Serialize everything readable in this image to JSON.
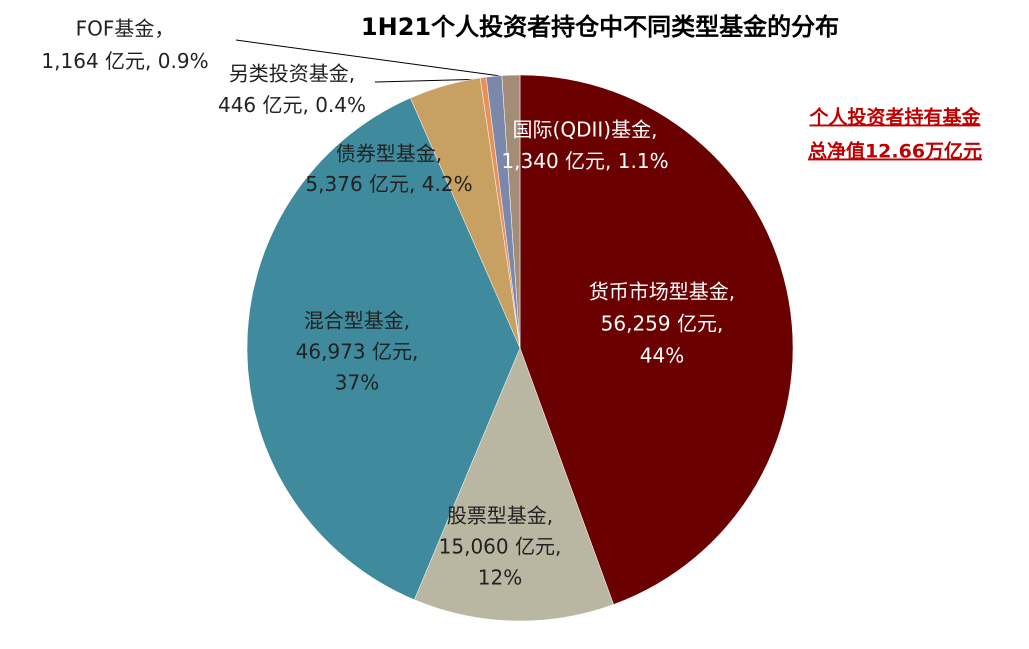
{
  "chart_data": {
    "type": "pie",
    "title": "1H21个人投资者持仓中不同类型基金的分布",
    "annotation": [
      "个人投资者持有基金",
      "总净值12.66万亿元"
    ],
    "categories": [
      "货币市场型基金,",
      "股票型基金,",
      "混合型基金,",
      "债券型基金,",
      "另类投资基金,",
      "FOF基金，",
      "国际(QDII)基金,"
    ],
    "values": [
      56259,
      15060,
      46973,
      5376,
      446,
      1164,
      1340
    ],
    "value_labels": [
      "56,259 亿元,",
      "15,060 亿元,",
      "46,973 亿元,",
      "5,376 亿元,",
      "446 亿元,",
      "1,164 亿元,",
      "1,340 亿元,"
    ],
    "shares": [
      44,
      12,
      37,
      4.2,
      0.4,
      0.9,
      1.1
    ],
    "share_labels": [
      "44%",
      "12%",
      "37%",
      "4.2%",
      "0.4%",
      "0.9%",
      "1.1%"
    ],
    "colors": [
      "#6b0000",
      "#b9b6a2",
      "#3f8a9c",
      "#c8a062",
      "#e8905a",
      "#7c88aa",
      "#a38d78"
    ]
  }
}
